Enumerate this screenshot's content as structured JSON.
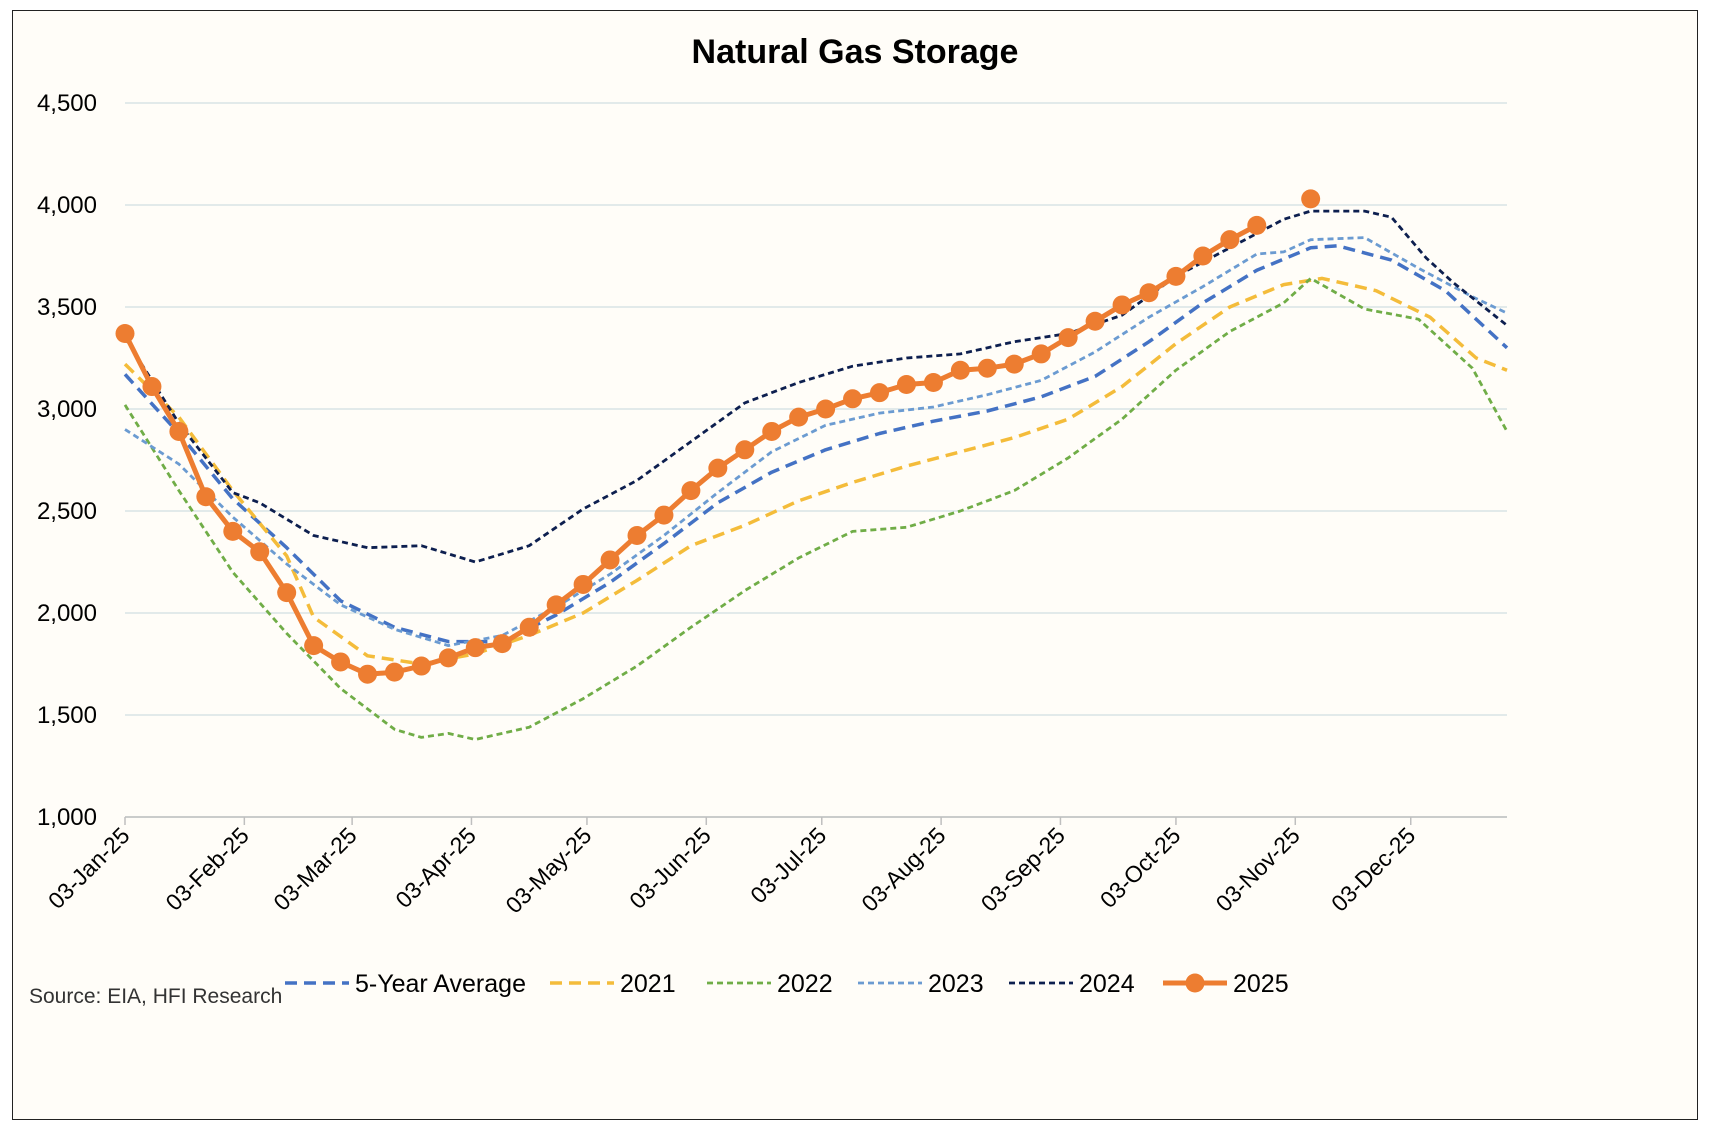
{
  "chart_data": {
    "type": "line",
    "title": "Natural Gas Storage",
    "source": "Source: EIA, HFI Research",
    "xlabel": "",
    "ylabel": "",
    "x_range": [
      "2025-01-03",
      "2025-12-28"
    ],
    "ylim": [
      1000,
      4500
    ],
    "y_ticks": [
      1000,
      1500,
      2000,
      2500,
      3000,
      3500,
      4000,
      4500
    ],
    "y_tick_labels": [
      "1,000",
      "1,500",
      "2,000",
      "2,500",
      "3,000",
      "3,500",
      "4,000",
      "4,500"
    ],
    "x_ticks": [
      "2025-01-03",
      "2025-02-03",
      "2025-03-03",
      "2025-04-03",
      "2025-05-03",
      "2025-06-03",
      "2025-07-03",
      "2025-08-03",
      "2025-09-03",
      "2025-10-03",
      "2025-11-03",
      "2025-12-03"
    ],
    "x_tick_labels": [
      "03-Jan-25",
      "03-Feb-25",
      "03-Mar-25",
      "03-Apr-25",
      "03-May-25",
      "03-Jun-25",
      "03-Jul-25",
      "03-Aug-25",
      "03-Sep-25",
      "03-Oct-25",
      "03-Nov-25",
      "03-Dec-25"
    ],
    "grid": true,
    "legend_position": "bottom",
    "series": [
      {
        "name": "5-Year Average",
        "color": "#4472C4",
        "dash": "long-dash",
        "markers": false,
        "points": [
          [
            "2025-01-03",
            3170
          ],
          [
            "2025-01-17",
            2880
          ],
          [
            "2025-01-31",
            2560
          ],
          [
            "2025-02-14",
            2320
          ],
          [
            "2025-02-28",
            2060
          ],
          [
            "2025-03-14",
            1930
          ],
          [
            "2025-03-28",
            1860
          ],
          [
            "2025-04-11",
            1860
          ],
          [
            "2025-04-25",
            1990
          ],
          [
            "2025-05-09",
            2150
          ],
          [
            "2025-05-23",
            2340
          ],
          [
            "2025-06-06",
            2540
          ],
          [
            "2025-06-20",
            2690
          ],
          [
            "2025-07-04",
            2800
          ],
          [
            "2025-07-18",
            2880
          ],
          [
            "2025-08-01",
            2940
          ],
          [
            "2025-08-15",
            2990
          ],
          [
            "2025-08-29",
            3060
          ],
          [
            "2025-09-12",
            3160
          ],
          [
            "2025-09-26",
            3330
          ],
          [
            "2025-10-10",
            3520
          ],
          [
            "2025-10-24",
            3680
          ],
          [
            "2025-11-07",
            3790
          ],
          [
            "2025-11-14",
            3800
          ],
          [
            "2025-11-28",
            3730
          ],
          [
            "2025-12-12",
            3580
          ],
          [
            "2025-12-28",
            3300
          ]
        ]
      },
      {
        "name": "2021",
        "color": "#F4BC3A",
        "dash": "long-dash",
        "markers": false,
        "points": [
          [
            "2025-01-03",
            3220
          ],
          [
            "2025-01-17",
            2960
          ],
          [
            "2025-01-31",
            2600
          ],
          [
            "2025-02-14",
            2280
          ],
          [
            "2025-02-21",
            1980
          ],
          [
            "2025-03-07",
            1790
          ],
          [
            "2025-03-21",
            1750
          ],
          [
            "2025-04-04",
            1800
          ],
          [
            "2025-04-18",
            1890
          ],
          [
            "2025-05-02",
            2000
          ],
          [
            "2025-05-16",
            2160
          ],
          [
            "2025-05-30",
            2330
          ],
          [
            "2025-06-13",
            2430
          ],
          [
            "2025-06-27",
            2550
          ],
          [
            "2025-07-11",
            2640
          ],
          [
            "2025-07-25",
            2720
          ],
          [
            "2025-08-08",
            2790
          ],
          [
            "2025-08-22",
            2860
          ],
          [
            "2025-09-05",
            2950
          ],
          [
            "2025-09-19",
            3110
          ],
          [
            "2025-10-03",
            3320
          ],
          [
            "2025-10-17",
            3500
          ],
          [
            "2025-10-31",
            3610
          ],
          [
            "2025-11-10",
            3640
          ],
          [
            "2025-11-24",
            3580
          ],
          [
            "2025-12-08",
            3450
          ],
          [
            "2025-12-20",
            3250
          ],
          [
            "2025-12-28",
            3190
          ]
        ]
      },
      {
        "name": "2022",
        "color": "#70AD47",
        "dash": "short-dash",
        "markers": false,
        "points": [
          [
            "2025-01-03",
            3020
          ],
          [
            "2025-01-17",
            2600
          ],
          [
            "2025-01-31",
            2200
          ],
          [
            "2025-02-14",
            1900
          ],
          [
            "2025-02-28",
            1630
          ],
          [
            "2025-03-14",
            1430
          ],
          [
            "2025-03-21",
            1390
          ],
          [
            "2025-03-28",
            1410
          ],
          [
            "2025-04-04",
            1380
          ],
          [
            "2025-04-18",
            1440
          ],
          [
            "2025-05-02",
            1580
          ],
          [
            "2025-05-16",
            1740
          ],
          [
            "2025-05-30",
            1930
          ],
          [
            "2025-06-13",
            2110
          ],
          [
            "2025-06-27",
            2270
          ],
          [
            "2025-07-11",
            2400
          ],
          [
            "2025-07-25",
            2420
          ],
          [
            "2025-08-08",
            2500
          ],
          [
            "2025-08-22",
            2600
          ],
          [
            "2025-09-05",
            2760
          ],
          [
            "2025-09-19",
            2950
          ],
          [
            "2025-10-03",
            3190
          ],
          [
            "2025-10-17",
            3380
          ],
          [
            "2025-10-31",
            3520
          ],
          [
            "2025-11-07",
            3640
          ],
          [
            "2025-11-21",
            3490
          ],
          [
            "2025-12-05",
            3440
          ],
          [
            "2025-12-19",
            3200
          ],
          [
            "2025-12-28",
            2890
          ]
        ]
      },
      {
        "name": "2023",
        "color": "#6B9BD1",
        "dash": "short-dash",
        "markers": false,
        "points": [
          [
            "2025-01-03",
            2900
          ],
          [
            "2025-01-17",
            2730
          ],
          [
            "2025-01-31",
            2470
          ],
          [
            "2025-02-14",
            2240
          ],
          [
            "2025-02-28",
            2040
          ],
          [
            "2025-03-14",
            1920
          ],
          [
            "2025-03-28",
            1840
          ],
          [
            "2025-04-11",
            1890
          ],
          [
            "2025-04-25",
            2030
          ],
          [
            "2025-05-09",
            2190
          ],
          [
            "2025-05-23",
            2380
          ],
          [
            "2025-06-06",
            2590
          ],
          [
            "2025-06-20",
            2790
          ],
          [
            "2025-07-04",
            2920
          ],
          [
            "2025-07-18",
            2980
          ],
          [
            "2025-08-01",
            3010
          ],
          [
            "2025-08-15",
            3070
          ],
          [
            "2025-08-29",
            3140
          ],
          [
            "2025-09-12",
            3280
          ],
          [
            "2025-09-26",
            3450
          ],
          [
            "2025-10-10",
            3600
          ],
          [
            "2025-10-24",
            3760
          ],
          [
            "2025-10-31",
            3770
          ],
          [
            "2025-11-07",
            3830
          ],
          [
            "2025-11-21",
            3840
          ],
          [
            "2025-12-05",
            3690
          ],
          [
            "2025-12-19",
            3550
          ],
          [
            "2025-12-28",
            3470
          ]
        ]
      },
      {
        "name": "2024",
        "color": "#0D1F4F",
        "dash": "short-dash",
        "markers": false,
        "points": [
          [
            "2025-01-03",
            3350
          ],
          [
            "2025-01-17",
            2930
          ],
          [
            "2025-01-31",
            2590
          ],
          [
            "2025-02-07",
            2540
          ],
          [
            "2025-02-21",
            2380
          ],
          [
            "2025-03-07",
            2320
          ],
          [
            "2025-03-21",
            2330
          ],
          [
            "2025-04-04",
            2250
          ],
          [
            "2025-04-18",
            2330
          ],
          [
            "2025-05-02",
            2510
          ],
          [
            "2025-05-16",
            2650
          ],
          [
            "2025-05-30",
            2840
          ],
          [
            "2025-06-13",
            3030
          ],
          [
            "2025-06-27",
            3130
          ],
          [
            "2025-07-11",
            3210
          ],
          [
            "2025-07-25",
            3250
          ],
          [
            "2025-08-08",
            3270
          ],
          [
            "2025-08-22",
            3330
          ],
          [
            "2025-09-05",
            3370
          ],
          [
            "2025-09-19",
            3460
          ],
          [
            "2025-10-03",
            3650
          ],
          [
            "2025-10-17",
            3790
          ],
          [
            "2025-10-31",
            3930
          ],
          [
            "2025-11-07",
            3970
          ],
          [
            "2025-11-21",
            3970
          ],
          [
            "2025-11-28",
            3940
          ],
          [
            "2025-12-07",
            3740
          ],
          [
            "2025-12-14",
            3620
          ],
          [
            "2025-12-28",
            3410
          ]
        ]
      },
      {
        "name": "2025",
        "color": "#ED7D31",
        "dash": "solid",
        "markers": true,
        "points": [
          [
            "2025-01-03",
            3370
          ],
          [
            "2025-01-10",
            3110
          ],
          [
            "2025-01-17",
            2890
          ],
          [
            "2025-01-24",
            2570
          ],
          [
            "2025-01-31",
            2400
          ],
          [
            "2025-02-07",
            2300
          ],
          [
            "2025-02-14",
            2100
          ],
          [
            "2025-02-21",
            1840
          ],
          [
            "2025-02-28",
            1760
          ],
          [
            "2025-03-07",
            1700
          ],
          [
            "2025-03-14",
            1710
          ],
          [
            "2025-03-21",
            1740
          ],
          [
            "2025-03-28",
            1780
          ],
          [
            "2025-04-04",
            1830
          ],
          [
            "2025-04-11",
            1850
          ],
          [
            "2025-04-18",
            1930
          ],
          [
            "2025-04-25",
            2040
          ],
          [
            "2025-05-02",
            2140
          ],
          [
            "2025-05-09",
            2260
          ],
          [
            "2025-05-16",
            2380
          ],
          [
            "2025-05-23",
            2480
          ],
          [
            "2025-05-30",
            2600
          ],
          [
            "2025-06-06",
            2710
          ],
          [
            "2025-06-13",
            2800
          ],
          [
            "2025-06-20",
            2890
          ],
          [
            "2025-06-27",
            2960
          ],
          [
            "2025-07-04",
            3000
          ],
          [
            "2025-07-11",
            3050
          ],
          [
            "2025-07-18",
            3080
          ],
          [
            "2025-07-25",
            3120
          ],
          [
            "2025-08-01",
            3130
          ],
          [
            "2025-08-08",
            3190
          ],
          [
            "2025-08-15",
            3200
          ],
          [
            "2025-08-22",
            3220
          ],
          [
            "2025-08-29",
            3270
          ],
          [
            "2025-09-05",
            3350
          ],
          [
            "2025-09-12",
            3430
          ],
          [
            "2025-09-19",
            3510
          ],
          [
            "2025-09-26",
            3570
          ],
          [
            "2025-10-03",
            3650
          ],
          [
            "2025-10-10",
            3750
          ],
          [
            "2025-10-17",
            3830
          ],
          [
            "2025-10-24",
            3900
          ],
          [
            "2025-11-07",
            4030
          ]
        ],
        "break_before_last": true
      }
    ]
  }
}
